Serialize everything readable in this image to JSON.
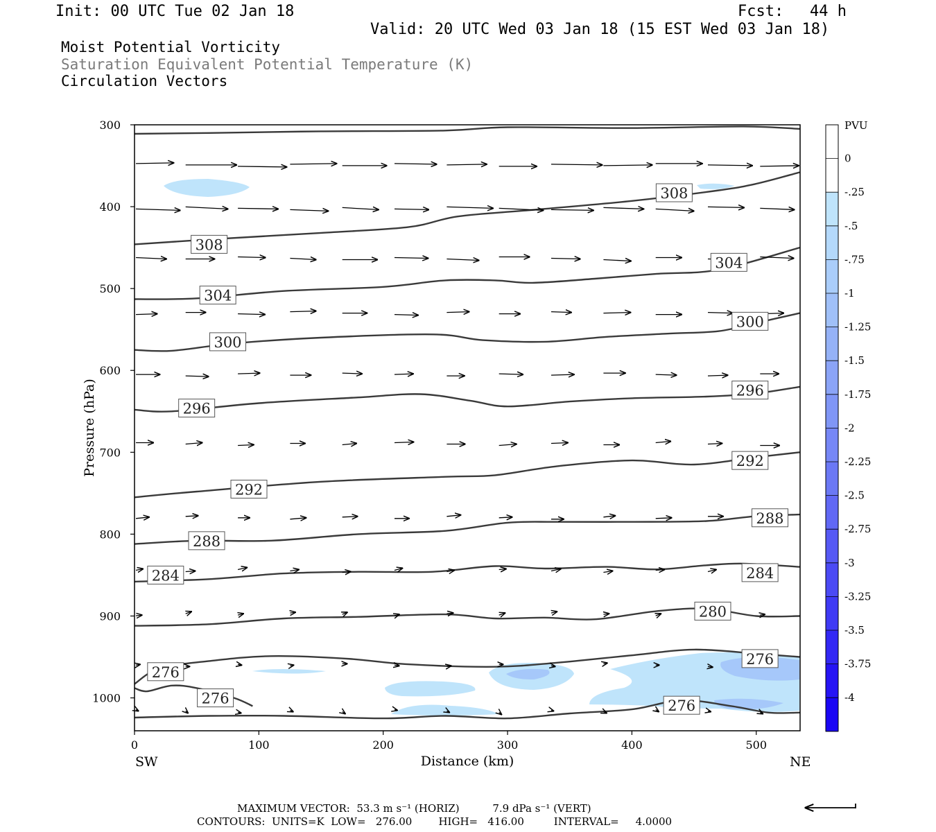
{
  "header": {
    "init": "Init: 00 UTC Tue 02 Jan 18",
    "fcst_label": "Fcst:",
    "fcst_value": "44 h",
    "valid": "Valid: 20 UTC Wed 03 Jan 18 (15 EST Wed 03 Jan 18)"
  },
  "fields": {
    "line1": "Moist Potential Vorticity",
    "line2": "Saturation Equivalent Potential Temperature (K)",
    "line3": "Circulation Vectors"
  },
  "colors": {
    "line1": "#000000",
    "line2": "#7a7a7a",
    "line3": "#000000",
    "contour": "#3a3a3a",
    "frame": "#000000"
  },
  "footer": {
    "max_vector": "MAXIMUM VECTOR:  53.3 m s⁻¹ (HORIZ)          7.9 dPa s⁻¹ (VERT)",
    "contours": "CONTOURS:  UNITS=K  LOW=   276.00        HIGH=   416.00         INTERVAL=     4.0000"
  },
  "chart_data": {
    "type": "cross-section",
    "xlabel": "Distance (km)",
    "ylabel": "Pressure (hPa)",
    "xlim": [
      0,
      535
    ],
    "ylim": [
      1040,
      300
    ],
    "x_ticks": [
      "0",
      "100",
      "200",
      "300",
      "400",
      "500"
    ],
    "y_ticks": [
      "300",
      "400",
      "500",
      "600",
      "700",
      "800",
      "900",
      "1000"
    ],
    "x_endpoints": [
      "SW",
      "NE"
    ],
    "colorbar": {
      "title": "PVU",
      "labels": [
        "0",
        "-.25",
        "-.5",
        "-.75",
        "-1",
        "-1.25",
        "-1.5",
        "-1.75",
        "-2",
        "-2.25",
        "-2.5",
        "-2.75",
        "-3",
        "-3.25",
        "-3.5",
        "-3.75",
        "-4"
      ],
      "colors": [
        "#ffffff",
        "#ffffff",
        "#bfe4fb",
        "#b4d9fb",
        "#aacdfa",
        "#a0c0f8",
        "#95b2f7",
        "#8ba4f7",
        "#8096f6",
        "#7687f6",
        "#6b78f5",
        "#6168f5",
        "#5659f5",
        "#4b4af5",
        "#3f3af5",
        "#3328f5",
        "#2614f5",
        "#1a06f5"
      ]
    },
    "contours": [
      {
        "value": 308,
        "label": "",
        "points": [
          [
            0,
            311
          ],
          [
            60,
            310
          ],
          [
            150,
            308
          ],
          [
            250,
            307
          ],
          [
            300,
            303
          ],
          [
            400,
            304
          ],
          [
            490,
            302
          ],
          [
            535,
            305
          ]
        ]
      },
      {
        "value": 308,
        "label": "308",
        "points": [
          [
            0,
            446
          ],
          [
            60,
            440
          ],
          [
            150,
            432
          ],
          [
            220,
            425
          ],
          [
            260,
            412
          ],
          [
            320,
            404
          ],
          [
            400,
            393
          ],
          [
            470,
            380
          ],
          [
            500,
            372
          ],
          [
            535,
            358
          ]
        ]
      },
      {
        "value": 304,
        "label": "304",
        "points": [
          [
            0,
            513
          ],
          [
            50,
            512
          ],
          [
            120,
            503
          ],
          [
            200,
            498
          ],
          [
            250,
            490
          ],
          [
            290,
            490
          ],
          [
            320,
            493
          ],
          [
            370,
            488
          ],
          [
            420,
            482
          ],
          [
            470,
            477
          ],
          [
            535,
            450
          ]
        ]
      },
      {
        "value": 300,
        "label": "300",
        "points": [
          [
            0,
            575
          ],
          [
            30,
            576
          ],
          [
            80,
            567
          ],
          [
            150,
            560
          ],
          [
            240,
            556
          ],
          [
            280,
            563
          ],
          [
            330,
            565
          ],
          [
            380,
            559
          ],
          [
            430,
            555
          ],
          [
            470,
            552
          ],
          [
            500,
            542
          ],
          [
            535,
            530
          ]
        ]
      },
      {
        "value": 296,
        "label": "296",
        "points": [
          [
            0,
            648
          ],
          [
            30,
            650
          ],
          [
            100,
            640
          ],
          [
            180,
            633
          ],
          [
            230,
            629
          ],
          [
            270,
            637
          ],
          [
            300,
            644
          ],
          [
            350,
            638
          ],
          [
            400,
            634
          ],
          [
            460,
            632
          ],
          [
            500,
            628
          ],
          [
            535,
            620
          ]
        ]
      },
      {
        "value": 292,
        "label": "292",
        "points": [
          [
            0,
            755
          ],
          [
            50,
            748
          ],
          [
            150,
            736
          ],
          [
            250,
            730
          ],
          [
            290,
            728
          ],
          [
            340,
            717
          ],
          [
            400,
            710
          ],
          [
            450,
            715
          ],
          [
            500,
            706
          ],
          [
            535,
            700
          ]
        ]
      },
      {
        "value": 288,
        "label": "288",
        "points": [
          [
            0,
            812
          ],
          [
            50,
            808
          ],
          [
            110,
            808
          ],
          [
            180,
            800
          ],
          [
            250,
            796
          ],
          [
            300,
            786
          ],
          [
            340,
            785
          ],
          [
            400,
            785
          ],
          [
            460,
            784
          ],
          [
            500,
            778
          ],
          [
            535,
            776
          ]
        ]
      },
      {
        "value": 284,
        "label": "284",
        "points": [
          [
            0,
            858
          ],
          [
            60,
            855
          ],
          [
            120,
            848
          ],
          [
            180,
            846
          ],
          [
            240,
            846
          ],
          [
            290,
            839
          ],
          [
            330,
            842
          ],
          [
            380,
            840
          ],
          [
            420,
            843
          ],
          [
            460,
            838
          ],
          [
            490,
            836
          ],
          [
            535,
            840
          ]
        ]
      },
      {
        "value": 280,
        "label": "280",
        "points": [
          [
            0,
            912
          ],
          [
            60,
            910
          ],
          [
            120,
            903
          ],
          [
            180,
            901
          ],
          [
            250,
            898
          ],
          [
            290,
            903
          ],
          [
            330,
            902
          ],
          [
            370,
            904
          ],
          [
            420,
            894
          ],
          [
            460,
            891
          ],
          [
            500,
            900
          ],
          [
            535,
            900
          ]
        ]
      },
      {
        "value": 276,
        "label": "276",
        "points": [
          [
            0,
            983
          ],
          [
            20,
            964
          ],
          [
            60,
            955
          ],
          [
            110,
            949
          ],
          [
            170,
            952
          ],
          [
            220,
            959
          ],
          [
            290,
            962
          ],
          [
            340,
            957
          ],
          [
            400,
            948
          ],
          [
            450,
            941
          ],
          [
            500,
            946
          ],
          [
            535,
            950
          ]
        ]
      },
      {
        "value": 276,
        "label": "276",
        "points": [
          [
            0,
            988
          ],
          [
            10,
            992
          ],
          [
            30,
            985
          ],
          [
            50,
            988
          ],
          [
            80,
            1000
          ],
          [
            95,
            1010
          ]
        ]
      },
      {
        "value": 276,
        "label": "276",
        "points": [
          [
            0,
            1024
          ],
          [
            60,
            1022
          ],
          [
            120,
            1022
          ],
          [
            200,
            1025
          ],
          [
            250,
            1022
          ],
          [
            300,
            1025
          ],
          [
            350,
            1019
          ],
          [
            400,
            1014
          ],
          [
            440,
            1003
          ],
          [
            480,
            1010
          ],
          [
            510,
            1018
          ],
          [
            535,
            1018
          ]
        ]
      }
    ]
  }
}
